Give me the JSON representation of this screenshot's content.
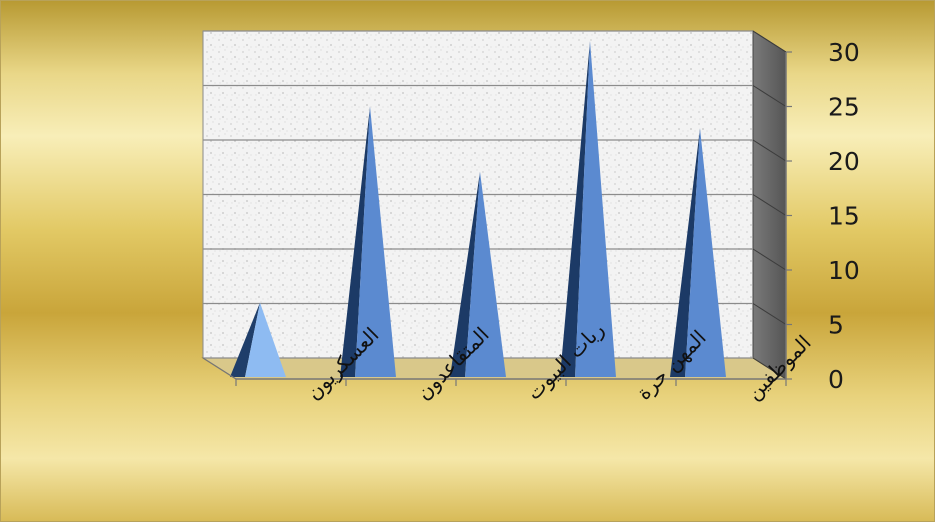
{
  "chart_data": {
    "type": "bar",
    "style": "3d-pyramid",
    "categories": [
      "العسكريون",
      "المتقاعدون",
      "ربات البيوت",
      "المهن حرة",
      "الموظفين"
    ],
    "values": [
      6,
      24,
      18,
      30,
      22
    ],
    "y_axis_position": "right",
    "ylim": [
      0,
      30
    ],
    "yticks": [
      "0",
      "5",
      "10",
      "15",
      "20",
      "25",
      "30"
    ],
    "grid": true,
    "legend": "none",
    "title": "",
    "xlabel": "",
    "ylabel": "",
    "colors": {
      "bar_front": "#5b8ad0",
      "bar_side": "#1c3a66",
      "highlight_bar_front": "#8ebbf2",
      "highlight_bar_side": "#1f3e6a",
      "plot_wall": "#f2f2f2",
      "side_wall": "#6e6e6e",
      "floor": "#d9c88a",
      "frame_gold": "#e2c965"
    }
  }
}
